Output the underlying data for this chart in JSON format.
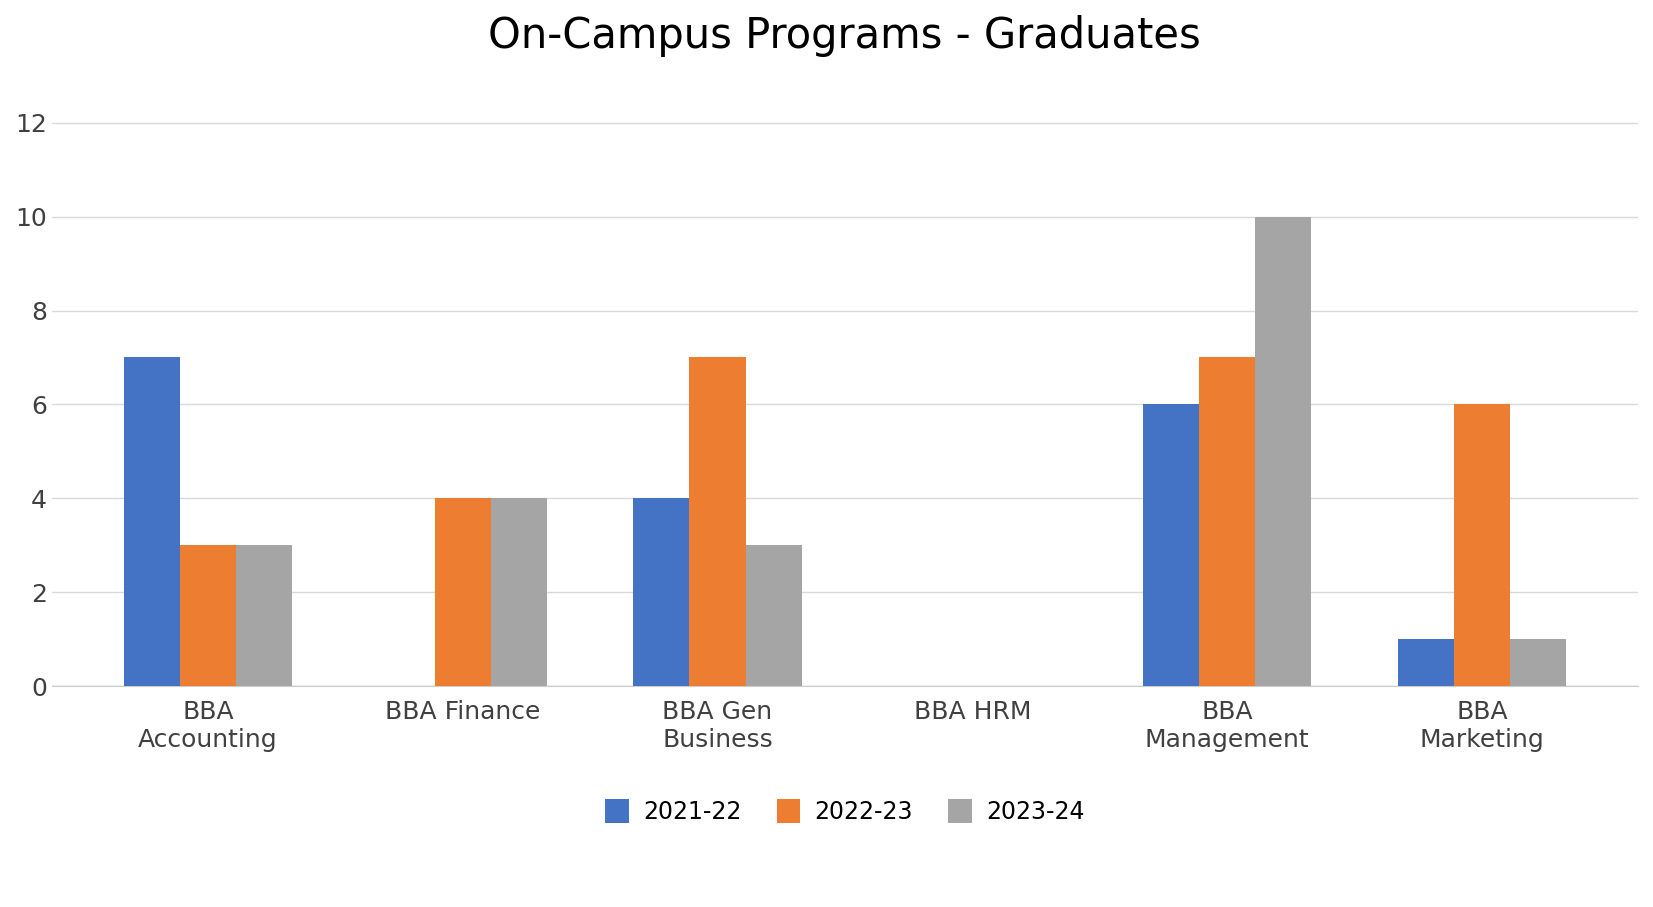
{
  "title": "On-Campus Programs - Graduates",
  "categories": [
    "BBA\nAccounting",
    "BBA Finance",
    "BBA Gen\nBusiness",
    "BBA HRM",
    "BBA\nManagement",
    "BBA\nMarketing"
  ],
  "series": {
    "2021-22": [
      7,
      0,
      4,
      0,
      6,
      1
    ],
    "2022-23": [
      3,
      4,
      7,
      0,
      7,
      6
    ],
    "2023-24": [
      3,
      4,
      3,
      0,
      10,
      1
    ]
  },
  "colors": {
    "2021-22": "#4472C4",
    "2022-23": "#ED7D31",
    "2023-24": "#A5A5A5"
  },
  "ylim": [
    0,
    13
  ],
  "yticks": [
    0,
    2,
    4,
    6,
    8,
    10,
    12
  ],
  "legend_labels": [
    "2021-22",
    "2022-23",
    "2023-24"
  ],
  "background_color": "#FFFFFF",
  "title_fontsize": 30,
  "tick_fontsize": 18,
  "legend_fontsize": 17,
  "bar_width": 0.22,
  "grid_color": "#D9D9D9"
}
